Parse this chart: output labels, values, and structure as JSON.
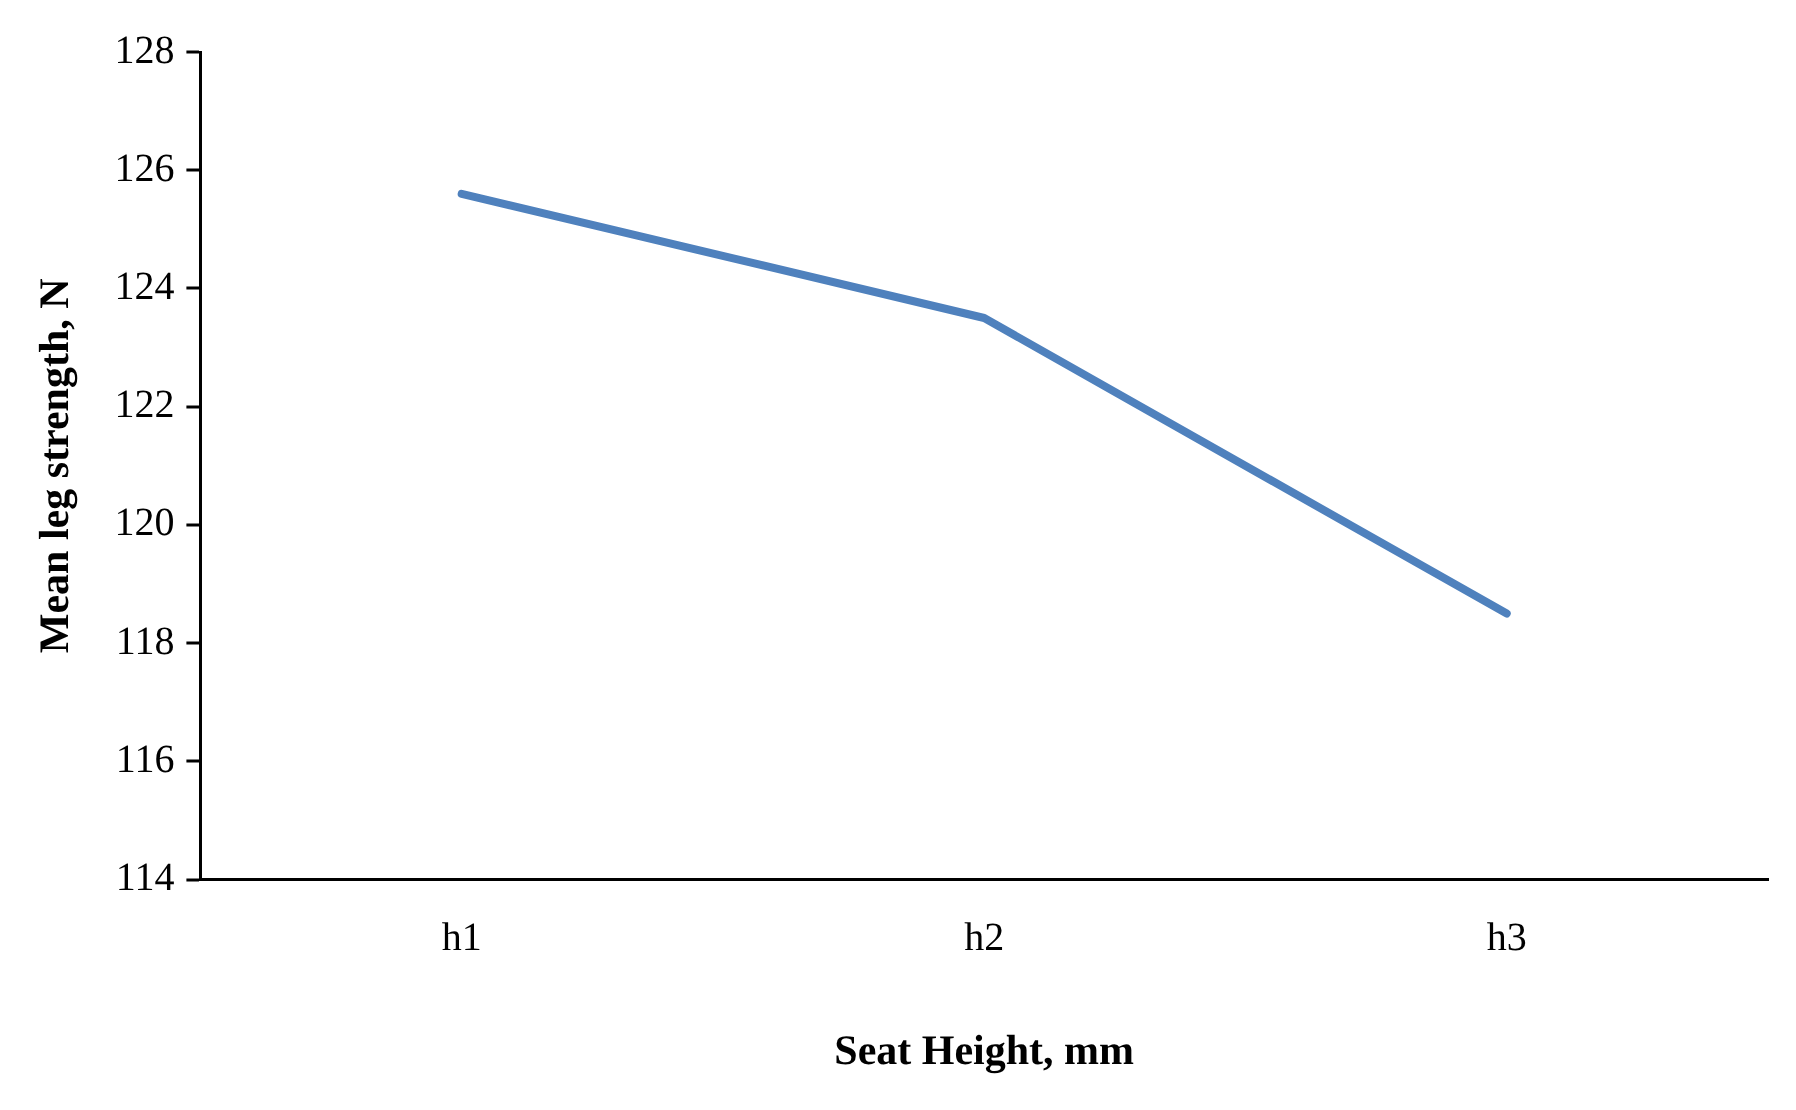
{
  "chart_data": {
    "type": "line",
    "xlabel": "Seat Height, mm",
    "ylabel": "Mean leg strength, N",
    "categories": [
      "h1",
      "h2",
      "h3"
    ],
    "series": [
      {
        "color": "#4f81bd",
        "values": [
          125.6,
          123.5,
          118.5
        ]
      }
    ],
    "ylim": [
      114,
      128
    ],
    "yticks": [
      114,
      116,
      118,
      120,
      122,
      124,
      126,
      128
    ],
    "marker": "none",
    "line_style": "solid",
    "grid": false,
    "legend": false
  }
}
